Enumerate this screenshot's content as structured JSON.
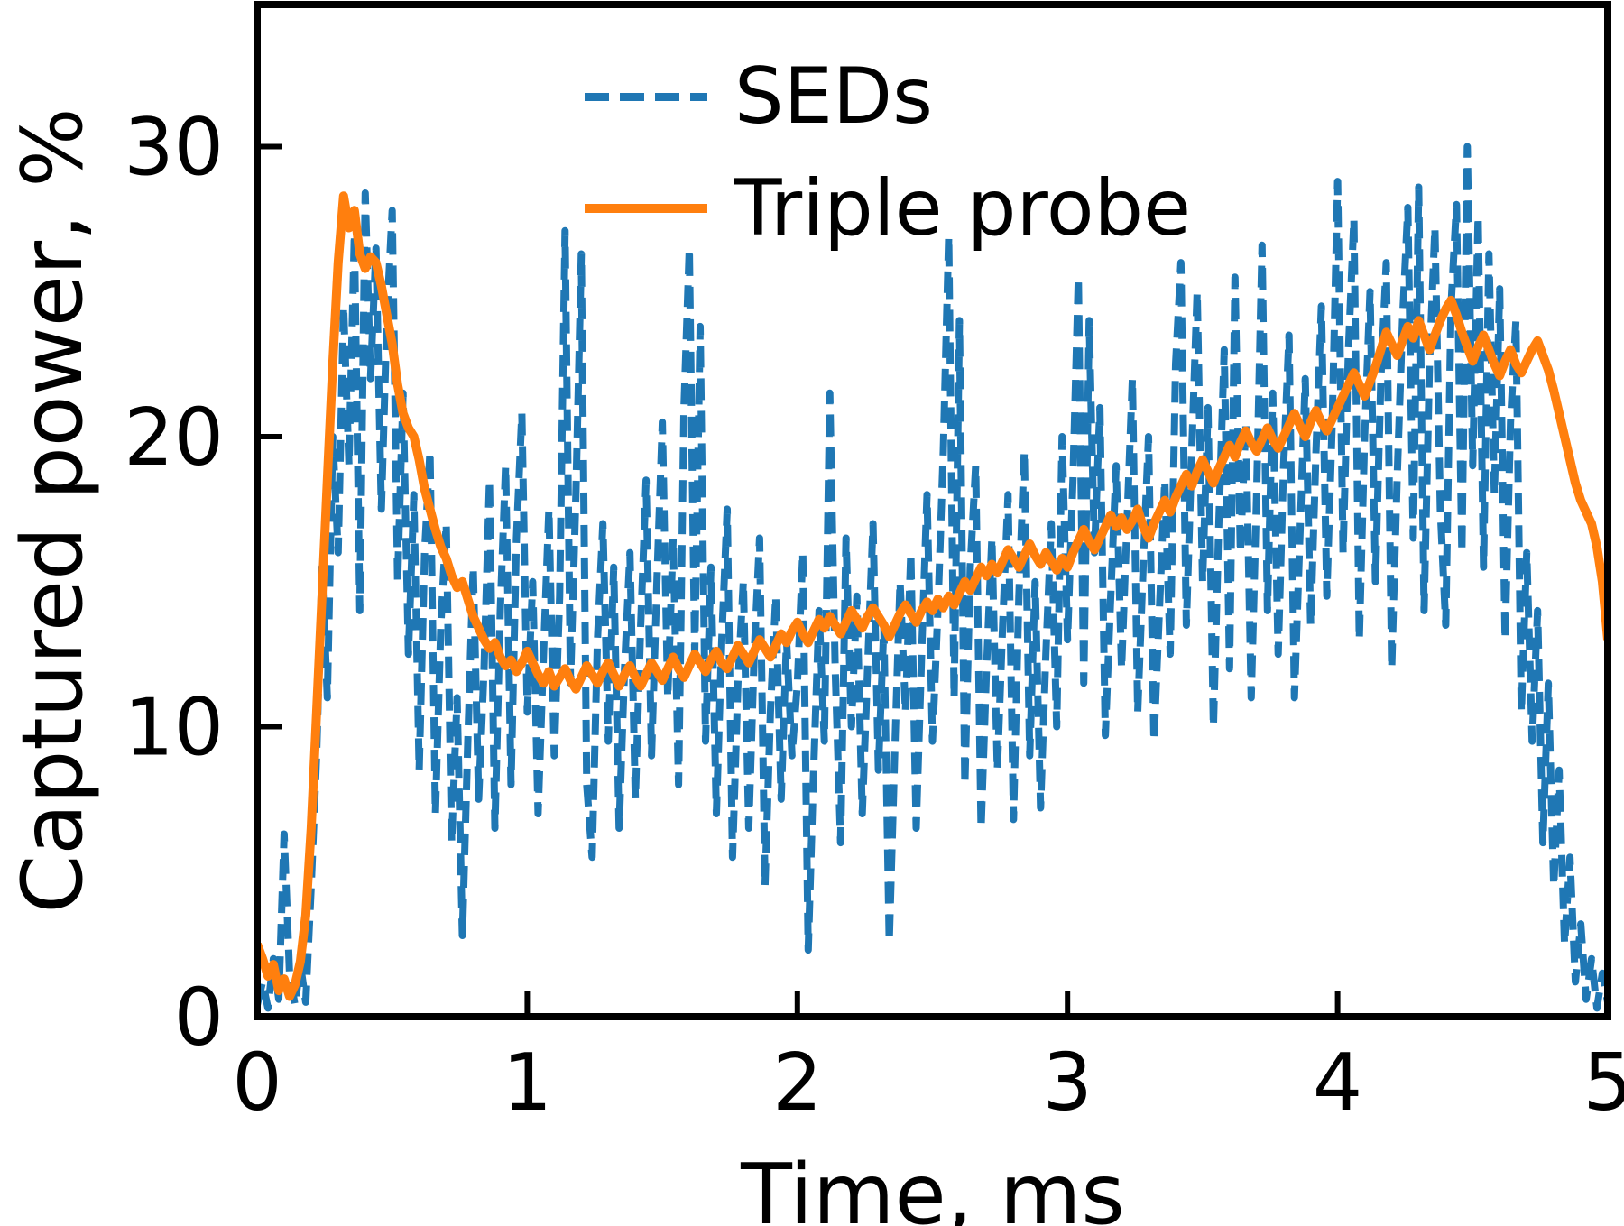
{
  "figure": {
    "background": "#ffffff",
    "spine_color": "#000000"
  },
  "chart_data": {
    "type": "line",
    "title": "",
    "xlabel": "Time, ms",
    "ylabel": "Captured power, %",
    "xlim": [
      0,
      5
    ],
    "ylim": [
      0,
      34.9
    ],
    "x_ticks": [
      0,
      1,
      2,
      3,
      4,
      5
    ],
    "y_ticks": [
      0,
      10,
      20,
      30
    ],
    "grid": false,
    "legend_position": "upper center",
    "legend_frame": false,
    "x_start": 0,
    "x_step": 0.02,
    "series": [
      {
        "name": "SEDs",
        "color": "#1f77b4",
        "line_style": "dashed",
        "line_width": 8,
        "values": [
          0.4,
          1.2,
          0.3,
          2.0,
          0.6,
          6.3,
          1.5,
          0.4,
          1.8,
          0.5,
          4.5,
          9.0,
          15.5,
          11.0,
          20.0,
          16.0,
          24.5,
          19.0,
          27.0,
          14.0,
          28.4,
          22.0,
          26.5,
          17.5,
          24.0,
          27.8,
          15.0,
          21.5,
          12.5,
          18.0,
          8.5,
          16.0,
          19.5,
          7.0,
          13.5,
          17.0,
          6.0,
          11.0,
          2.8,
          9.5,
          15.5,
          7.5,
          12.0,
          18.5,
          6.5,
          14.0,
          19.0,
          8.0,
          16.5,
          20.8,
          10.5,
          15.0,
          7.0,
          12.5,
          17.5,
          9.0,
          14.5,
          27.1,
          11.5,
          18.0,
          26.3,
          8.0,
          5.5,
          13.0,
          17.0,
          9.5,
          15.5,
          6.5,
          12.0,
          16.0,
          7.5,
          13.5,
          18.5,
          9.0,
          15.0,
          20.5,
          11.0,
          16.5,
          8.0,
          21.0,
          26.5,
          12.5,
          23.8,
          9.5,
          15.5,
          7.0,
          13.0,
          17.5,
          5.5,
          11.5,
          15.0,
          6.5,
          12.5,
          16.5,
          4.5,
          10.5,
          14.5,
          7.5,
          13.0,
          9.0,
          11.5,
          16.0,
          2.3,
          8.5,
          14.0,
          9.5,
          21.5,
          12.0,
          6.0,
          16.5,
          10.0,
          14.5,
          7.0,
          12.0,
          17.0,
          8.5,
          13.5,
          2.6,
          9.0,
          15.0,
          10.5,
          16.0,
          6.5,
          12.5,
          18.0,
          9.5,
          14.0,
          19.5,
          26.9,
          11.0,
          24.0,
          8.0,
          15.5,
          19.0,
          6.5,
          12.0,
          16.5,
          8.5,
          13.5,
          18.0,
          6.8,
          14.5,
          19.5,
          9.0,
          15.0,
          7.2,
          12.5,
          17.0,
          10.0,
          20.0,
          13.0,
          18.5,
          25.5,
          11.5,
          24.0,
          16.0,
          21.0,
          9.7,
          14.5,
          19.0,
          12.0,
          17.0,
          22.0,
          10.5,
          15.5,
          20.0,
          9.5,
          14.0,
          18.5,
          12.5,
          22.5,
          26.0,
          13.5,
          19.5,
          25.0,
          15.0,
          21.0,
          10.0,
          17.0,
          23.0,
          12.0,
          25.5,
          16.0,
          20.5,
          11.0,
          18.0,
          26.6,
          14.0,
          21.5,
          12.5,
          19.0,
          23.5,
          11.0,
          16.5,
          22.0,
          13.5,
          19.5,
          24.5,
          14.5,
          20.5,
          28.8,
          16.0,
          23.0,
          27.5,
          13.0,
          20.0,
          25.0,
          15.0,
          22.0,
          26.0,
          12.0,
          18.5,
          24.0,
          27.9,
          16.5,
          28.6,
          14.0,
          22.5,
          27.2,
          17.5,
          13.5,
          24.5,
          28.0,
          16.0,
          30.0,
          19.0,
          27.6,
          15.5,
          26.3,
          18.0,
          25.1,
          13.0,
          20.5,
          24.0,
          10.5,
          16.0,
          9.5,
          14.0,
          6.0,
          11.5,
          4.5,
          8.5,
          2.5,
          5.5,
          1.2,
          3.2,
          0.6,
          2.0,
          0.3,
          1.5,
          0.5
        ]
      },
      {
        "name": "Triple probe",
        "color": "#ff7f0e",
        "line_style": "solid",
        "line_width": 10,
        "values": [
          2.5,
          2.0,
          1.4,
          1.8,
          0.9,
          1.3,
          0.7,
          1.1,
          1.9,
          3.5,
          6.5,
          10.5,
          14.5,
          18.5,
          22.5,
          26.0,
          28.3,
          27.2,
          27.8,
          26.3,
          25.8,
          26.2,
          26.0,
          25.2,
          24.2,
          23.2,
          21.8,
          20.8,
          20.3,
          20.0,
          19.2,
          18.2,
          17.5,
          16.8,
          16.2,
          15.8,
          15.2,
          14.8,
          15.0,
          14.4,
          13.8,
          13.4,
          13.0,
          12.7,
          12.9,
          12.4,
          12.1,
          12.3,
          11.9,
          12.2,
          12.6,
          12.2,
          11.8,
          11.5,
          11.9,
          11.4,
          11.7,
          12.0,
          11.6,
          11.3,
          11.7,
          12.1,
          11.8,
          11.5,
          11.9,
          12.2,
          11.8,
          11.4,
          11.8,
          12.1,
          11.7,
          11.4,
          11.8,
          12.2,
          11.9,
          11.6,
          12.0,
          12.4,
          12.0,
          11.7,
          12.1,
          12.5,
          12.2,
          11.9,
          12.3,
          12.6,
          12.2,
          12.0,
          12.4,
          12.8,
          12.5,
          12.2,
          12.6,
          13.0,
          12.7,
          12.4,
          12.8,
          13.2,
          12.9,
          13.3,
          13.6,
          13.2,
          12.9,
          13.3,
          13.7,
          13.4,
          13.8,
          13.5,
          13.2,
          13.6,
          14.0,
          13.7,
          13.4,
          13.8,
          14.1,
          13.8,
          13.5,
          13.1,
          13.5,
          13.9,
          14.2,
          13.9,
          13.6,
          14.0,
          14.3,
          14.0,
          14.4,
          14.1,
          14.5,
          14.2,
          14.6,
          15.0,
          14.7,
          15.1,
          15.5,
          15.2,
          15.6,
          15.3,
          15.7,
          16.1,
          15.8,
          15.5,
          15.9,
          16.3,
          15.9,
          15.6,
          16.0,
          15.7,
          15.4,
          15.8,
          15.5,
          16.0,
          16.4,
          16.8,
          16.4,
          16.1,
          16.5,
          16.9,
          17.3,
          16.9,
          17.2,
          16.8,
          17.1,
          17.5,
          16.9,
          16.5,
          17.0,
          17.4,
          17.8,
          17.4,
          17.9,
          18.3,
          18.7,
          18.3,
          18.8,
          19.2,
          18.8,
          18.4,
          18.9,
          19.3,
          19.7,
          19.3,
          19.8,
          20.2,
          19.8,
          19.5,
          19.9,
          20.3,
          19.9,
          19.6,
          20.0,
          20.4,
          20.8,
          20.4,
          20.0,
          20.5,
          20.9,
          20.5,
          20.2,
          20.6,
          21.0,
          21.4,
          21.8,
          22.2,
          21.8,
          21.4,
          21.9,
          22.4,
          23.0,
          23.6,
          23.2,
          22.8,
          23.3,
          23.8,
          23.4,
          24.0,
          23.5,
          23.0,
          23.5,
          24.0,
          24.4,
          24.7,
          24.2,
          23.6,
          23.1,
          22.6,
          23.1,
          23.5,
          23.0,
          22.5,
          22.1,
          22.6,
          23.0,
          22.5,
          22.2,
          22.6,
          23.0,
          23.3,
          22.8,
          22.3,
          21.6,
          20.8,
          20.0,
          19.2,
          18.4,
          17.8,
          17.4,
          17.0,
          16.2,
          15.0,
          13.0
        ]
      }
    ]
  }
}
